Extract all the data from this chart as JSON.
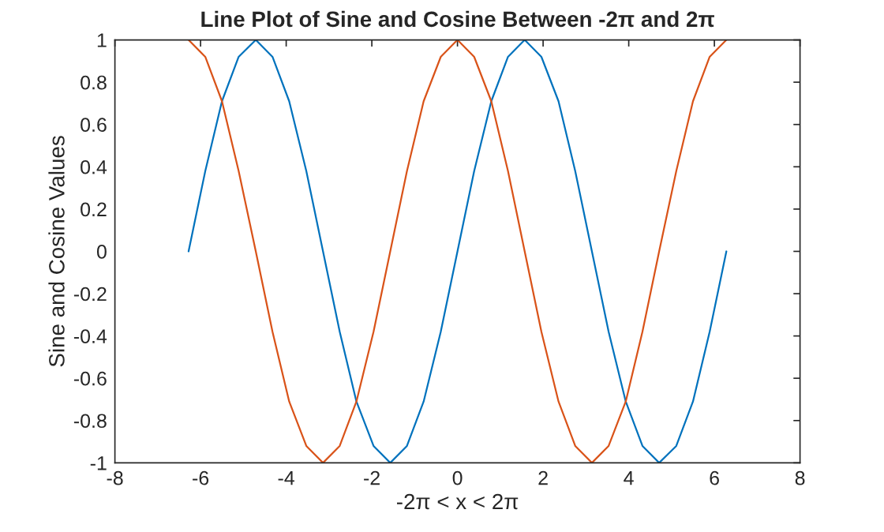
{
  "chart_data": {
    "type": "line",
    "title": "Line Plot of Sine and Cosine Between -2π and 2π",
    "xlabel": "-2π < x < 2π",
    "ylabel": "Sine and Cosine Values",
    "x": [
      -6.28,
      -5.89,
      -5.5,
      -5.11,
      -4.71,
      -4.32,
      -3.93,
      -3.53,
      -3.14,
      -2.75,
      -2.36,
      -1.96,
      -1.57,
      -1.18,
      -0.79,
      -0.39,
      0,
      0.39,
      0.79,
      1.18,
      1.57,
      1.96,
      2.36,
      2.75,
      3.14,
      3.53,
      3.93,
      4.32,
      4.71,
      5.11,
      5.5,
      5.89,
      6.28
    ],
    "series": [
      {
        "color": "#0072bd",
        "values": [
          0,
          0.38,
          0.71,
          0.92,
          1,
          0.92,
          0.71,
          0.38,
          0,
          -0.38,
          -0.71,
          -0.92,
          -1,
          -0.92,
          -0.71,
          -0.38,
          0,
          0.38,
          0.71,
          0.92,
          1,
          0.92,
          0.71,
          0.38,
          0,
          -0.38,
          -0.71,
          -0.92,
          -1,
          -0.92,
          -0.71,
          -0.38,
          0
        ]
      },
      {
        "color": "#d95319",
        "values": [
          1,
          0.92,
          0.71,
          0.38,
          0,
          -0.38,
          -0.71,
          -0.92,
          -1,
          -0.92,
          -0.71,
          -0.38,
          0,
          0.38,
          0.71,
          0.92,
          1,
          0.92,
          0.71,
          0.38,
          0,
          -0.38,
          -0.71,
          -0.92,
          -1,
          -0.92,
          -0.71,
          -0.38,
          0,
          0.38,
          0.71,
          0.92,
          1
        ]
      }
    ],
    "xlim": [
      -8,
      8
    ],
    "xticks": [
      -8,
      -6,
      -4,
      -2,
      0,
      2,
      4,
      6,
      8
    ],
    "ylim": [
      -1,
      1
    ],
    "yticks": [
      -1,
      -0.8,
      -0.6,
      -0.4,
      -0.2,
      0,
      0.2,
      0.4,
      0.6,
      0.8,
      1
    ],
    "grid": false,
    "marker": "none",
    "line_style": "solid"
  }
}
